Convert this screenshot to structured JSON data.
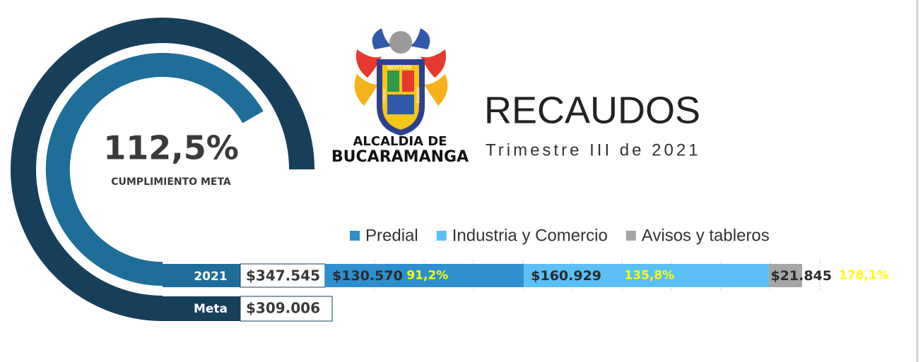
{
  "chart_data": {
    "type": "bar",
    "orientation": "horizontal",
    "stacked": true,
    "title": "RECAUDOS",
    "subtitle": "Trimestre III de 2021",
    "kpi": {
      "value_label": "112,5%",
      "label": "CUMPLIMIENTO META"
    },
    "logo": {
      "motto": [
        "MONTANI",
        "LIBERI",
        "SEMPER"
      ],
      "name": [
        "ALCALDIA DE",
        "BUCARAMANGA"
      ]
    },
    "rows": [
      {
        "label": "2021",
        "value_label": "$347.545"
      },
      {
        "label": "Meta",
        "value_label": "$309.006"
      }
    ],
    "categories": [
      "2021"
    ],
    "series": [
      {
        "name": "Predial",
        "color": "#2e8fcf",
        "values": [
          130570
        ],
        "value_labels": [
          "$130.570"
        ],
        "percent_labels": [
          "91,2%"
        ]
      },
      {
        "name": "Industria y Comercio",
        "color": "#5bc0f5",
        "values": [
          160929
        ],
        "value_labels": [
          "$160.929"
        ],
        "percent_labels": [
          "135,8%"
        ]
      },
      {
        "name": "Avisos y tableros",
        "color": "#a6a6a6",
        "values": [
          21845
        ],
        "value_labels": [
          "$21.845"
        ],
        "percent_labels": [
          "178,1%"
        ]
      }
    ]
  }
}
